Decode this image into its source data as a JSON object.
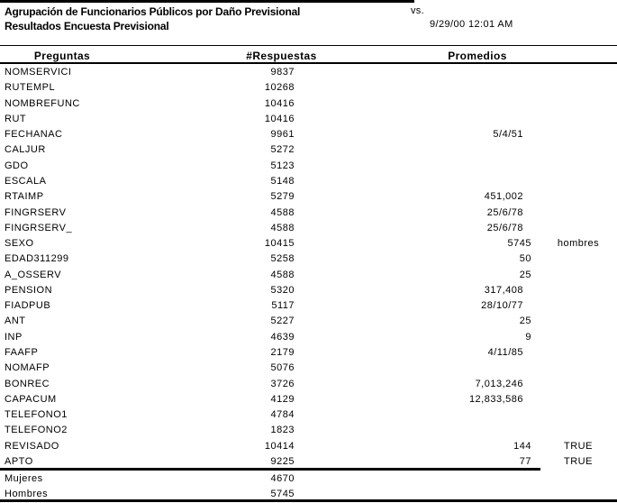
{
  "report": {
    "title_line1": "Agrupación de Funcionarios Públicos por Daño Previsional",
    "title_line2": "Resultados Encuesta Previsional",
    "vs_label": "vs.",
    "datetime": "9/29/00 12:01 AM"
  },
  "colors": {
    "text": "#000000",
    "background": "#ffffff",
    "rules": "#000000"
  },
  "table": {
    "columns": {
      "preguntas": "Preguntas",
      "respuestas": "#Respuestas",
      "promedios": "Promedios"
    },
    "rows": [
      {
        "label": "NOMSERVICI",
        "respuestas": "9837",
        "promedio": "",
        "prom_type": "",
        "extra": ""
      },
      {
        "label": "RUTEMPL",
        "respuestas": "10268",
        "promedio": "",
        "prom_type": "",
        "extra": ""
      },
      {
        "label": "NOMBREFUNC",
        "respuestas": "10416",
        "promedio": "",
        "prom_type": "",
        "extra": ""
      },
      {
        "label": "RUT",
        "respuestas": "10416",
        "promedio": "",
        "prom_type": "",
        "extra": ""
      },
      {
        "label": "FECHANAC",
        "respuestas": "9961",
        "promedio": "5/4/51",
        "prom_type": "fmt",
        "extra": ""
      },
      {
        "label": "CALJUR",
        "respuestas": "5272",
        "promedio": "",
        "prom_type": "",
        "extra": ""
      },
      {
        "label": "GDO",
        "respuestas": "5123",
        "promedio": "",
        "prom_type": "",
        "extra": ""
      },
      {
        "label": "ESCALA",
        "respuestas": "5148",
        "promedio": "",
        "prom_type": "",
        "extra": ""
      },
      {
        "label": "RTAIMP",
        "respuestas": "5279",
        "promedio": "451,002",
        "prom_type": "fmt",
        "extra": ""
      },
      {
        "label": "FINGRSERV",
        "respuestas": "4588",
        "promedio": "25/6/78",
        "prom_type": "fmt",
        "extra": ""
      },
      {
        "label": "FINGRSERV_",
        "respuestas": "4588",
        "promedio": "25/6/78",
        "prom_type": "fmt",
        "extra": ""
      },
      {
        "label": "SEXO",
        "respuestas": "10415",
        "promedio": "5745",
        "prom_type": "int",
        "extra": "hombres"
      },
      {
        "label": "EDAD311299",
        "respuestas": "5258",
        "promedio": "50",
        "prom_type": "int",
        "extra": ""
      },
      {
        "label": "A_OSSERV",
        "respuestas": "4588",
        "promedio": "25",
        "prom_type": "int",
        "extra": ""
      },
      {
        "label": "PENSION",
        "respuestas": "5320",
        "promedio": "317,408",
        "prom_type": "fmt",
        "extra": ""
      },
      {
        "label": "FIADPUB",
        "respuestas": "5117",
        "promedio": "28/10/77",
        "prom_type": "fmt",
        "extra": ""
      },
      {
        "label": "ANT",
        "respuestas": "5227",
        "promedio": "25",
        "prom_type": "int",
        "extra": ""
      },
      {
        "label": "INP",
        "respuestas": "4639",
        "promedio": "9",
        "prom_type": "int",
        "extra": ""
      },
      {
        "label": "FAAFP",
        "respuestas": "2179",
        "promedio": "4/11/85",
        "prom_type": "fmt",
        "extra": ""
      },
      {
        "label": "NOMAFP",
        "respuestas": "5076",
        "promedio": "",
        "prom_type": "",
        "extra": ""
      },
      {
        "label": "BONREC",
        "respuestas": "3726",
        "promedio": "7,013,246",
        "prom_type": "fmt",
        "extra": ""
      },
      {
        "label": "CAPACUM",
        "respuestas": "4129",
        "promedio": "12,833,586",
        "prom_type": "fmt",
        "extra": ""
      },
      {
        "label": "TELEFONO1",
        "respuestas": "4784",
        "promedio": "",
        "prom_type": "",
        "extra": ""
      },
      {
        "label": "TELEFONO2",
        "respuestas": "1823",
        "promedio": "",
        "prom_type": "",
        "extra": ""
      },
      {
        "label": "REVISADO",
        "respuestas": "10414",
        "promedio": "144",
        "prom_type": "int",
        "extra": "TRUE"
      },
      {
        "label": "APTO",
        "respuestas": "9225",
        "promedio": "77",
        "prom_type": "int",
        "extra": "TRUE"
      }
    ],
    "footer_rows": [
      {
        "label": "Mujeres",
        "respuestas": "4670"
      },
      {
        "label": "Hombres",
        "respuestas": "5745"
      }
    ]
  }
}
